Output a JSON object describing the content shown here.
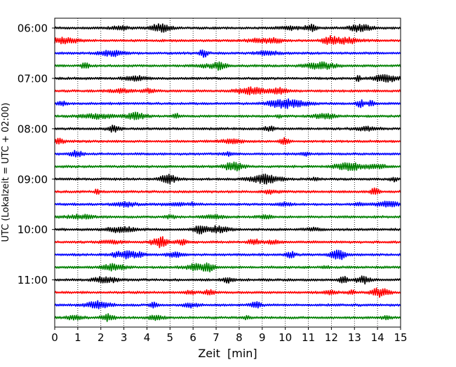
{
  "chart_data": {
    "type": "line",
    "title": "",
    "xlabel": "Zeit  [min]",
    "ylabel": "UTC (Lokalzeit = UTC + 02:00)",
    "xlim": [
      0,
      15
    ],
    "x_ticks": [
      0,
      1,
      2,
      3,
      4,
      5,
      6,
      7,
      8,
      9,
      10,
      11,
      12,
      13,
      14,
      15
    ],
    "y_tick_labels": [
      "06:00",
      "07:00",
      "08:00",
      "09:00",
      "10:00",
      "11:00"
    ],
    "y_tick_rows": [
      0,
      4,
      8,
      12,
      16,
      20
    ],
    "grid_vertical": true,
    "grid_style": "dotted",
    "row_minutes": 15,
    "rows": [
      {
        "start": "06:00",
        "color": "#000000"
      },
      {
        "start": "06:15",
        "color": "#ff0000"
      },
      {
        "start": "06:30",
        "color": "#0000ff"
      },
      {
        "start": "06:45",
        "color": "#008000"
      },
      {
        "start": "07:00",
        "color": "#000000"
      },
      {
        "start": "07:15",
        "color": "#ff0000"
      },
      {
        "start": "07:30",
        "color": "#0000ff"
      },
      {
        "start": "07:45",
        "color": "#008000"
      },
      {
        "start": "08:00",
        "color": "#000000"
      },
      {
        "start": "08:15",
        "color": "#ff0000"
      },
      {
        "start": "08:30",
        "color": "#0000ff"
      },
      {
        "start": "08:45",
        "color": "#008000"
      },
      {
        "start": "09:00",
        "color": "#000000"
      },
      {
        "start": "09:15",
        "color": "#ff0000"
      },
      {
        "start": "09:30",
        "color": "#0000ff"
      },
      {
        "start": "09:45",
        "color": "#008000"
      },
      {
        "start": "10:00",
        "color": "#000000"
      },
      {
        "start": "10:15",
        "color": "#ff0000"
      },
      {
        "start": "10:30",
        "color": "#0000ff"
      },
      {
        "start": "10:45",
        "color": "#008000"
      },
      {
        "start": "11:00",
        "color": "#000000"
      },
      {
        "start": "11:15",
        "color": "#ff0000"
      },
      {
        "start": "11:30",
        "color": "#0000ff"
      },
      {
        "start": "11:45",
        "color": "#008000"
      }
    ],
    "colors": {
      "trace_cycle": [
        "#000000",
        "#ff0000",
        "#0000ff",
        "#008000"
      ],
      "grid": "#000000",
      "axes": "#000000"
    }
  }
}
